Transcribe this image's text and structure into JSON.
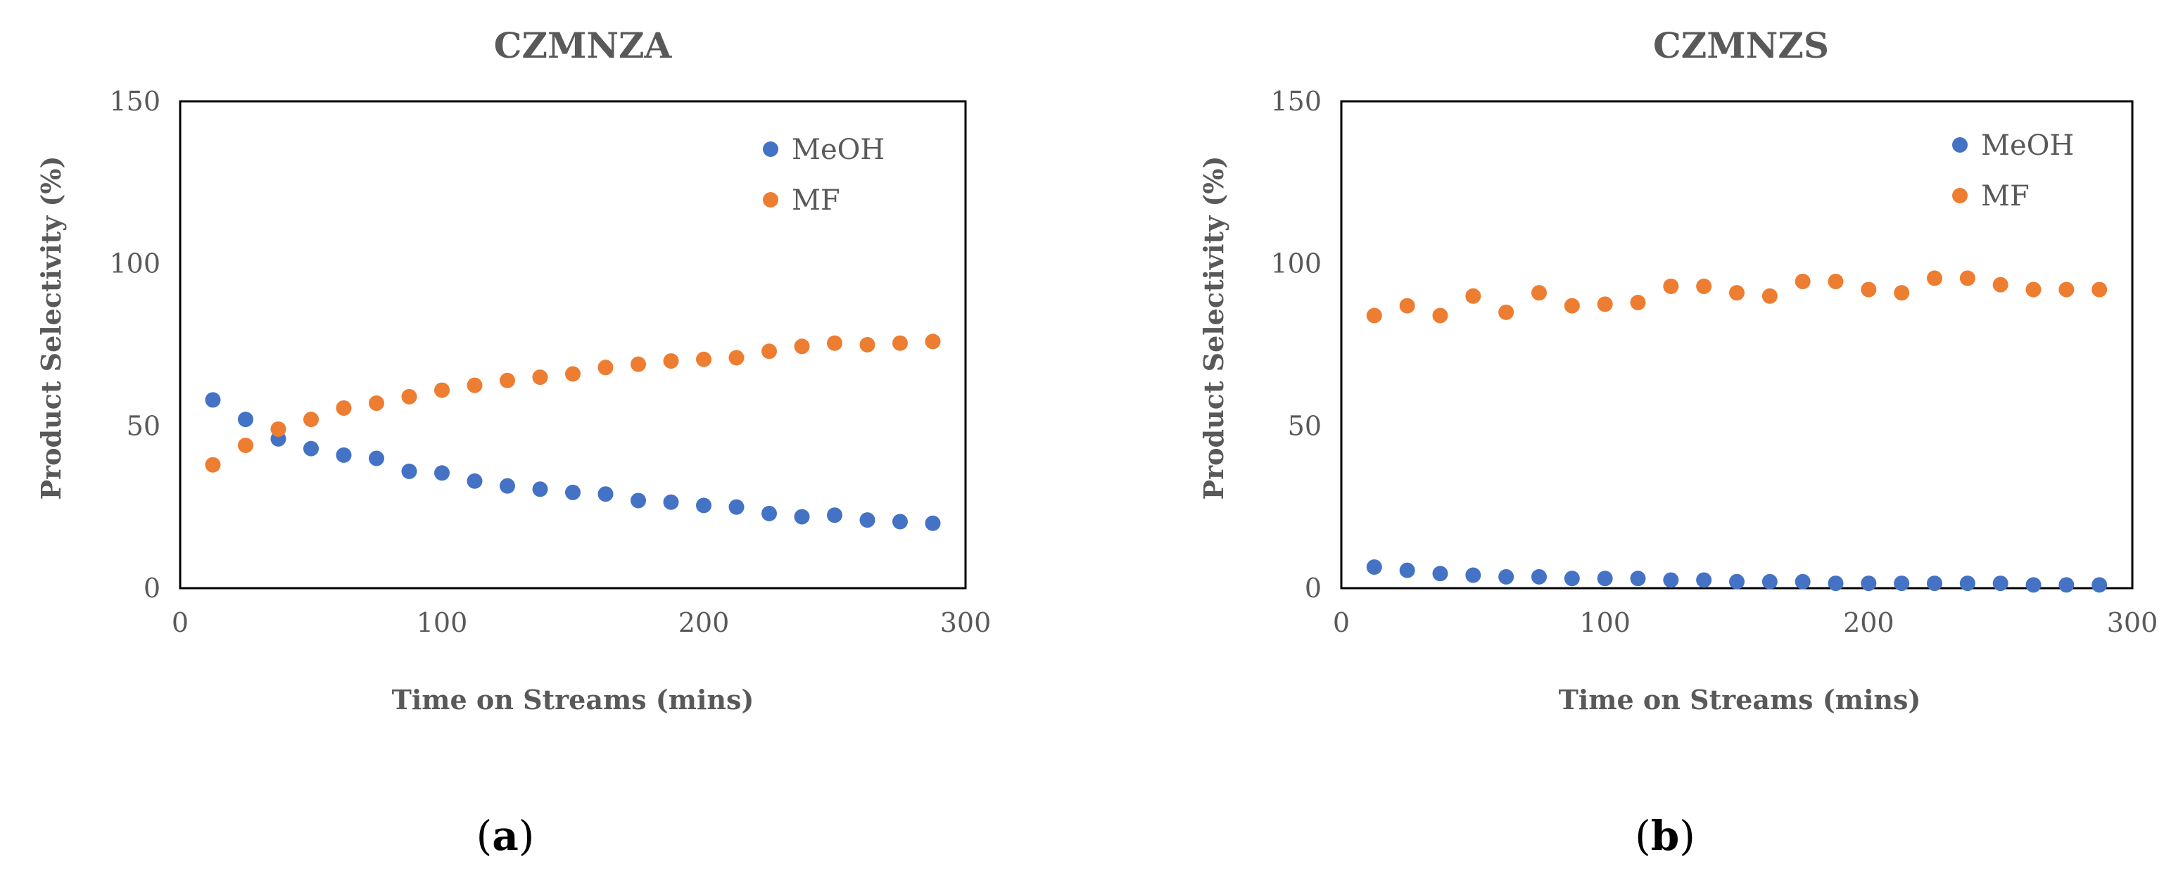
{
  "chart_data": [
    {
      "type": "scatter",
      "title": "CZMNZA",
      "xlabel": "Time on Streams (mins)",
      "ylabel": "Product Selectivity  (%)",
      "xlim": [
        0,
        300
      ],
      "ylim": [
        0,
        150
      ],
      "xticks": [
        "0",
        "100",
        "200",
        "300"
      ],
      "yticks": [
        "0",
        "50",
        "100",
        "150"
      ],
      "legend_position": "top-right",
      "panel_label": "a",
      "series": [
        {
          "name": "MeOH",
          "color": "#4472C4",
          "x": [
            12.5,
            25,
            37.5,
            50,
            62.5,
            75,
            87.5,
            100,
            112.5,
            125,
            137.5,
            150,
            162.5,
            175,
            187.5,
            200,
            212.5,
            225,
            237.5,
            250,
            262.5,
            275,
            287.5
          ],
          "y": [
            58,
            52,
            46,
            43,
            41,
            40,
            36,
            35.5,
            33,
            31.5,
            30.5,
            29.5,
            29,
            27,
            26.5,
            25.5,
            25,
            23,
            22,
            22.5,
            21,
            20.5,
            20
          ]
        },
        {
          "name": "MF",
          "color": "#ED7D31",
          "x": [
            12.5,
            25,
            37.5,
            50,
            62.5,
            75,
            87.5,
            100,
            112.5,
            125,
            137.5,
            150,
            162.5,
            175,
            187.5,
            200,
            212.5,
            225,
            237.5,
            250,
            262.5,
            275,
            287.5
          ],
          "y": [
            38,
            44,
            49,
            52,
            55.5,
            57,
            59,
            61,
            62.5,
            64,
            65,
            66,
            68,
            69,
            70,
            70.5,
            71,
            73,
            74.5,
            75.5,
            75,
            75.5,
            76
          ]
        }
      ]
    },
    {
      "type": "scatter",
      "title": "CZMNZS",
      "xlabel": "Time on Streams (mins)",
      "ylabel": "Product Selectivity  (%)",
      "xlim": [
        0,
        300
      ],
      "ylim": [
        0,
        150
      ],
      "xticks": [
        "0",
        "100",
        "200",
        "300"
      ],
      "yticks": [
        "0",
        "50",
        "100",
        "150"
      ],
      "legend_position": "top-right",
      "panel_label": "b",
      "series": [
        {
          "name": "MeOH",
          "color": "#4472C4",
          "x": [
            12.5,
            25,
            37.5,
            50,
            62.5,
            75,
            87.5,
            100,
            112.5,
            125,
            137.5,
            150,
            162.5,
            175,
            187.5,
            200,
            212.5,
            225,
            237.5,
            250,
            262.5,
            275,
            287.5
          ],
          "y": [
            6.5,
            5.5,
            4.5,
            4,
            3.5,
            3.5,
            3,
            3,
            3,
            2.5,
            2.5,
            2,
            2,
            2,
            1.5,
            1.5,
            1.5,
            1.5,
            1.5,
            1.5,
            1,
            1,
            1
          ]
        },
        {
          "name": "MF",
          "color": "#ED7D31",
          "x": [
            12.5,
            25,
            37.5,
            50,
            62.5,
            75,
            87.5,
            100,
            112.5,
            125,
            137.5,
            150,
            162.5,
            175,
            187.5,
            200,
            212.5,
            225,
            237.5,
            250,
            262.5,
            275,
            287.5
          ],
          "y": [
            84,
            87,
            84,
            90,
            85,
            91,
            87,
            87.5,
            88,
            93,
            93,
            91,
            90,
            94.5,
            94.5,
            92,
            91,
            95.5,
            95.5,
            93.5,
            92,
            92,
            92
          ]
        }
      ]
    }
  ]
}
